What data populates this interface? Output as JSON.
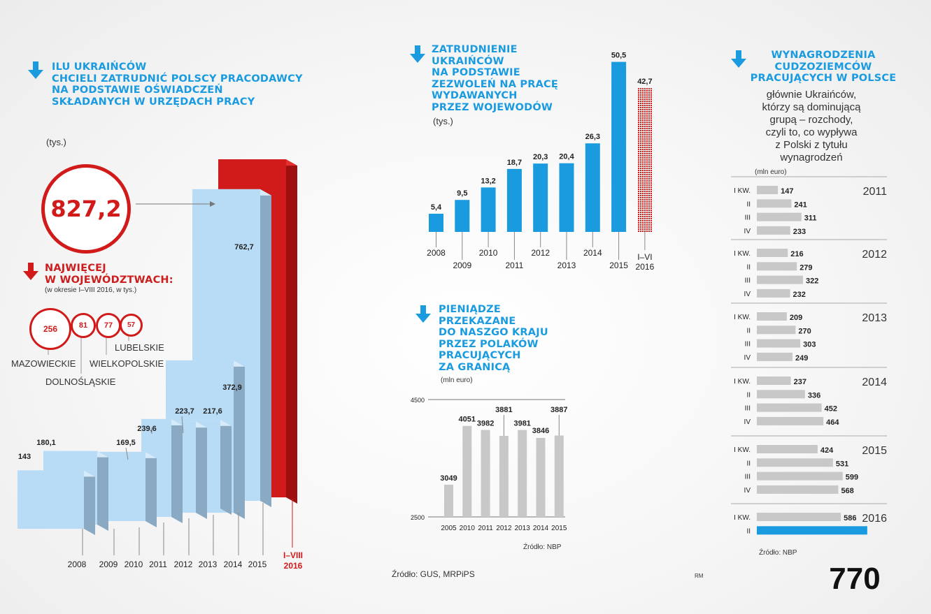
{
  "colors": {
    "blue": "#1a9be0",
    "lightblue": "#b9dcf6",
    "red": "#d11a1a",
    "grey": "#c8c8c8",
    "greyDark": "#a9a9a9"
  },
  "left": {
    "title": [
      "ILU UKRAIŃCÓW",
      "CHCIELI ZATRUDNIĆ POLSCY PRACODAWCY",
      "NA PODSTAWIE OŚWIADCZEŃ",
      "SKŁADANYCH W URZĘDACH PRACY"
    ],
    "unit": "(tys.)",
    "highlight": "827,2",
    "regions_title": [
      "NAJWIĘCEJ",
      "W WOJEWÓDZTWACH:"
    ],
    "regions_note": "(w okresie I–VIII 2016, w tys.)",
    "regions": [
      {
        "value": "256",
        "name": "MAZOWIECKIE"
      },
      {
        "value": "81",
        "name": "DOLNOŚLĄSKIE"
      },
      {
        "value": "77",
        "name": "WIELKOPOLSKIE"
      },
      {
        "value": "57",
        "name": "LUBELSKIE"
      }
    ],
    "source": "Źródło: GUS, MRPiPS"
  },
  "middle_top": {
    "title": [
      "ZATRUDNIENIE",
      "UKRAIŃCÓW",
      "NA PODSTAWIE",
      "ZEZWOLEŃ NA PRACĘ",
      "WYDAWANYCH",
      "PRZEZ WOJEWODÓW"
    ],
    "unit": "(tys.)"
  },
  "middle_bottom": {
    "title": [
      "PIENIĄDZE",
      "PRZEKAZANE",
      "DO NASZGO KRAJU",
      "PRZEZ POLAKÓW",
      "PRACUJĄCYCH",
      "ZA GRANICĄ"
    ],
    "unit": "(mln euro)",
    "source": "Źródło: NBP"
  },
  "right": {
    "title": [
      "WYNAGRODZENIA",
      "CUDZOZIEMCÓW",
      "PRACUJĄCYCH W POLSCE"
    ],
    "description": [
      "głównie Ukraińców,",
      "którzy są dominującą",
      "grupą – rozchody,",
      "czyli to, co wypływa",
      "z Polski z tytułu",
      "wynagrodzeń"
    ],
    "unit": "(mln euro)",
    "source": "Źródło: NBP",
    "credit": "RM"
  },
  "chart_data": [
    {
      "type": "bar",
      "name": "declarations",
      "title": "ILU UKRAIŃCÓW CHCIELI ZATRUDNIĆ POLSCY PRACODAWCY NA PODSTAWIE OŚWIADCZEŃ SKŁADANYCH W URZĘDACH PRACY",
      "ylabel": "(tys.)",
      "categories": [
        "2008",
        "2009",
        "2010",
        "2011",
        "2012",
        "2013",
        "2014",
        "2015",
        "I–VIII 2016"
      ],
      "values": [
        143,
        180.1,
        169.5,
        239.6,
        223.7,
        217.6,
        372.9,
        762.7,
        827.2
      ],
      "labels": [
        "143",
        "180,1",
        "169,5",
        "239,6",
        "223,7",
        "217,6",
        "372,9",
        "762,7",
        "827,2"
      ],
      "highlight_category": "I–VIII 2016"
    },
    {
      "type": "bar",
      "name": "permits",
      "title": "ZATRUDNIENIE UKRAIŃCÓW NA PODSTAWIE ZEZWOLEŃ NA PRACĘ WYDAWANYCH PRZEZ WOJEWODÓW",
      "ylabel": "(tys.)",
      "categories": [
        "2008",
        "2009",
        "2010",
        "2011",
        "2012",
        "2013",
        "2014",
        "2015",
        "I–VI 2016"
      ],
      "values": [
        5.4,
        9.5,
        13.2,
        18.7,
        20.3,
        20.4,
        26.3,
        50.5,
        42.7
      ],
      "labels": [
        "5,4",
        "9,5",
        "13,2",
        "18,7",
        "20,3",
        "20,4",
        "26,3",
        "50,5",
        "42,7"
      ],
      "partial_category": "I–VI 2016"
    },
    {
      "type": "bar",
      "name": "remittances",
      "title": "PIENIĄDZE PRZEKAZANE DO NASZGO KRAJU PRZEZ POLAKÓW PRACUJĄCYCH ZA GRANICĄ",
      "ylabel": "(mln euro)",
      "categories": [
        "2005",
        "2010",
        "2011",
        "2012",
        "2013",
        "2014",
        "2015"
      ],
      "values": [
        3049,
        4051,
        3982,
        3881,
        3981,
        3846,
        3887
      ],
      "ylim": [
        2500,
        4500
      ],
      "yticks": [
        "2500",
        "4500"
      ]
    },
    {
      "type": "bar",
      "name": "wages",
      "orientation": "horizontal",
      "title": "WYNAGRODZENIA CUDZOZIEMCÓW PRACUJĄCYCH W POLSCE",
      "ylabel": "(mln euro)",
      "groups": [
        {
          "year": "2011",
          "quarters": [
            "I KW.",
            "II",
            "III",
            "IV"
          ],
          "values": [
            147,
            241,
            311,
            233
          ]
        },
        {
          "year": "2012",
          "quarters": [
            "I KW.",
            "II",
            "III",
            "IV"
          ],
          "values": [
            216,
            279,
            322,
            232
          ]
        },
        {
          "year": "2013",
          "quarters": [
            "I KW.",
            "II",
            "III",
            "IV"
          ],
          "values": [
            209,
            270,
            303,
            249
          ]
        },
        {
          "year": "2014",
          "quarters": [
            "I KW.",
            "II",
            "III",
            "IV"
          ],
          "values": [
            237,
            336,
            452,
            464
          ]
        },
        {
          "year": "2015",
          "quarters": [
            "I KW.",
            "II",
            "III",
            "IV"
          ],
          "values": [
            424,
            531,
            599,
            568
          ]
        },
        {
          "year": "2016",
          "quarters": [
            "I KW.",
            "II"
          ],
          "values": [
            586,
            770
          ],
          "highlight_index": 1
        }
      ]
    }
  ]
}
